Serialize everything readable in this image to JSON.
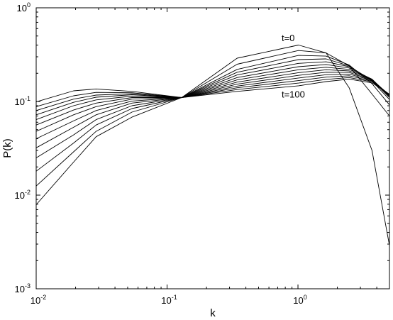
{
  "chart_data": {
    "type": "line",
    "xlabel": "k",
    "ylabel": "P(k)",
    "xscale": "log",
    "yscale": "log",
    "xlim": [
      0.01,
      5
    ],
    "ylim": [
      0.001,
      1
    ],
    "grid": false,
    "legend": "none",
    "line_color": "#000000",
    "x_ticks": [
      {
        "value": 0.01,
        "base": "10",
        "exp": "-2"
      },
      {
        "value": 0.1,
        "base": "10",
        "exp": "-1"
      },
      {
        "value": 1,
        "base": "10",
        "exp": "0"
      }
    ],
    "y_ticks": [
      {
        "value": 0.001,
        "base": "10",
        "exp": "-3"
      },
      {
        "value": 0.01,
        "base": "10",
        "exp": "-2"
      },
      {
        "value": 0.1,
        "base": "10",
        "exp": "-1"
      },
      {
        "value": 1,
        "base": "10",
        "exp": "0"
      }
    ],
    "annotations": [
      {
        "text": "t=0",
        "x": 0.75,
        "y": 0.44
      },
      {
        "text": "t=100",
        "x": 0.75,
        "y": 0.11
      }
    ],
    "x": [
      0.01,
      0.0193,
      0.0287,
      0.0539,
      0.1293,
      0.343,
      1.01,
      1.64,
      2.46,
      3.68,
      5
    ],
    "series": [
      {
        "values": [
          0.0079,
          0.0225,
          0.042,
          0.068,
          0.11,
          0.29,
          0.4,
          0.33,
          0.14,
          0.03,
          0.0029
        ]
      },
      {
        "values": [
          0.0125,
          0.029,
          0.048,
          0.077,
          0.11,
          0.25,
          0.35,
          0.33,
          0.24,
          0.12,
          0.07
        ]
      },
      {
        "values": [
          0.018,
          0.036,
          0.056,
          0.084,
          0.11,
          0.22,
          0.31,
          0.305,
          0.245,
          0.155,
          0.092
        ]
      },
      {
        "values": [
          0.025,
          0.044,
          0.064,
          0.09,
          0.11,
          0.205,
          0.28,
          0.285,
          0.24,
          0.165,
          0.105
        ]
      },
      {
        "values": [
          0.032,
          0.053,
          0.072,
          0.096,
          0.11,
          0.192,
          0.255,
          0.265,
          0.235,
          0.17,
          0.11
        ]
      },
      {
        "values": [
          0.04,
          0.062,
          0.08,
          0.101,
          0.11,
          0.18,
          0.235,
          0.248,
          0.228,
          0.173,
          0.113
        ]
      },
      {
        "values": [
          0.048,
          0.072,
          0.088,
          0.106,
          0.11,
          0.17,
          0.218,
          0.232,
          0.22,
          0.173,
          0.115
        ]
      },
      {
        "values": [
          0.056,
          0.081,
          0.096,
          0.11,
          0.11,
          0.161,
          0.203,
          0.218,
          0.212,
          0.172,
          0.116
        ]
      },
      {
        "values": [
          0.064,
          0.09,
          0.104,
          0.114,
          0.11,
          0.153,
          0.19,
          0.205,
          0.204,
          0.17,
          0.117
        ]
      },
      {
        "values": [
          0.072,
          0.098,
          0.111,
          0.118,
          0.11,
          0.146,
          0.178,
          0.193,
          0.196,
          0.168,
          0.118
        ]
      },
      {
        "values": [
          0.08,
          0.106,
          0.117,
          0.121,
          0.11,
          0.14,
          0.167,
          0.182,
          0.188,
          0.165,
          0.1185
        ]
      },
      {
        "values": [
          0.088,
          0.115,
          0.125,
          0.124,
          0.11,
          0.134,
          0.157,
          0.172,
          0.18,
          0.162,
          0.119
        ]
      },
      {
        "values": [
          0.099,
          0.13,
          0.136,
          0.128,
          0.11,
          0.128,
          0.147,
          0.163,
          0.173,
          0.158,
          0.1195
        ]
      }
    ]
  }
}
